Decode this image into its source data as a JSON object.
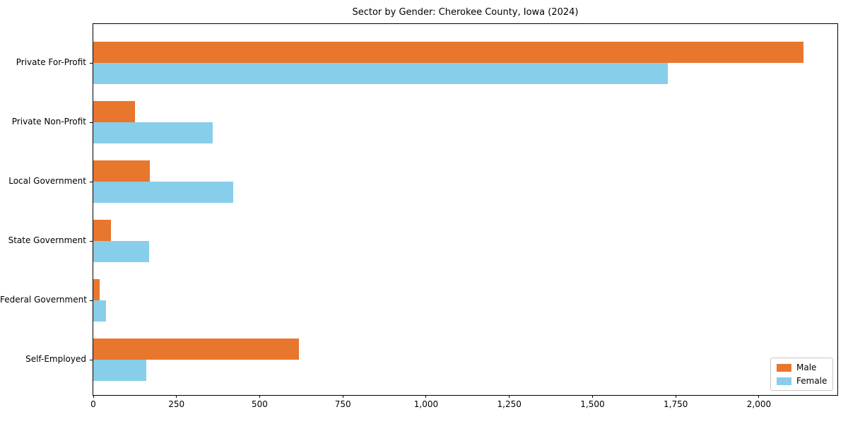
{
  "title": "Sector by Gender: Cherokee County, Iowa (2024)",
  "chart_data": {
    "type": "bar",
    "orientation": "horizontal",
    "title": "Sector by Gender: Cherokee County, Iowa (2024)",
    "categories": [
      "Private For-Profit",
      "Private Non-Profit",
      "Local Government",
      "State Government",
      "Federal Government",
      "Self-Employed"
    ],
    "series": [
      {
        "name": "Male",
        "color": "#e8762d",
        "values": [
          2133,
          125,
          170,
          53,
          19,
          617
        ]
      },
      {
        "name": "Female",
        "color": "#87ceeb",
        "values": [
          1726,
          358,
          421,
          167,
          38,
          159
        ]
      }
    ],
    "xlabel": "",
    "ylabel": "",
    "xlim": [
      0,
      2240
    ],
    "xticks": [
      0,
      250,
      500,
      750,
      1000,
      1250,
      1500,
      1750,
      2000
    ],
    "xtick_labels": [
      "0",
      "250",
      "500",
      "750",
      "1,000",
      "1,250",
      "1,500",
      "1,750",
      "2,000"
    ],
    "grid": false,
    "legend_position": "lower right",
    "bar_colors": {
      "male": "#e8762d",
      "female": "#87ceeb"
    },
    "spine_color": "#000000"
  }
}
